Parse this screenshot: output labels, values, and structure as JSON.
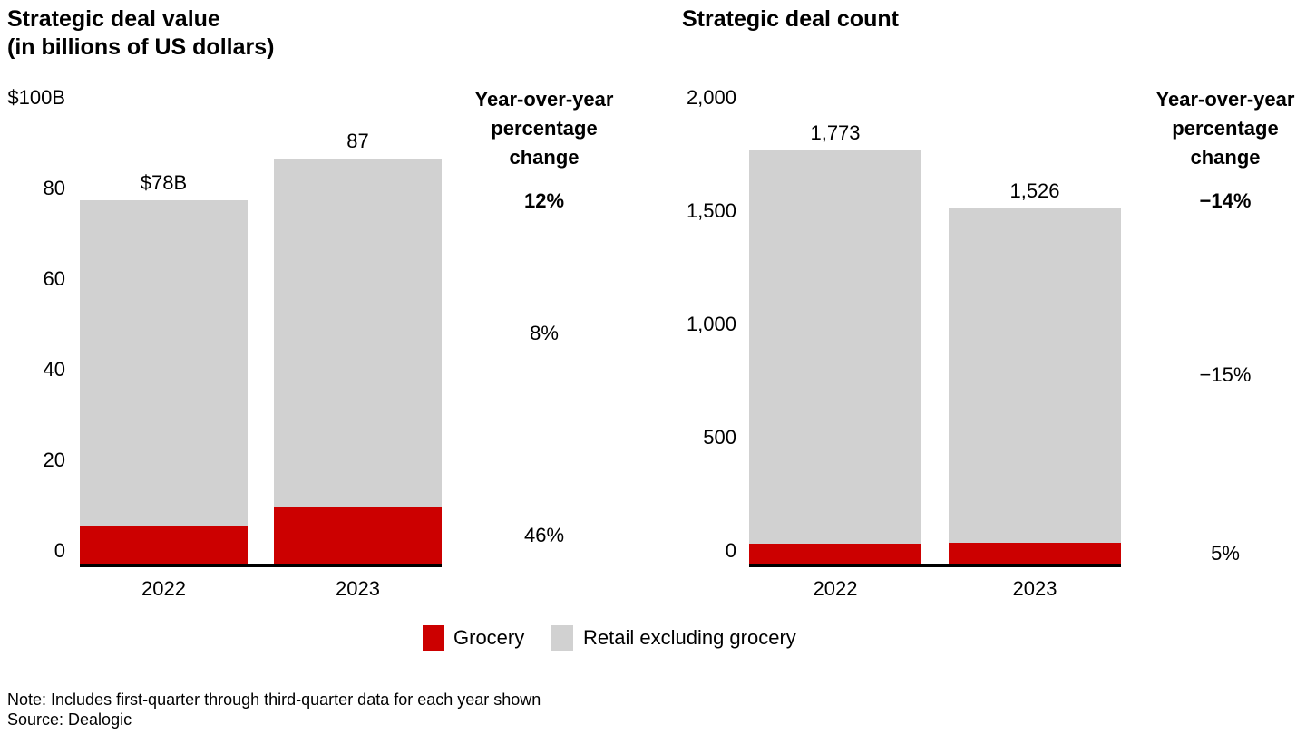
{
  "colors": {
    "grocery": "#cc0000",
    "retail": "#d1d1d1",
    "axis": "#000000",
    "text": "#000000",
    "background": "#ffffff"
  },
  "yoy_header": [
    "Year-over-year",
    "percentage",
    "change"
  ],
  "legend": [
    {
      "label": "Grocery",
      "color_key": "grocery"
    },
    {
      "label": "Retail excluding grocery",
      "color_key": "retail"
    }
  ],
  "note": "Note: Includes first-quarter through third-quarter data for each year shown",
  "source": "Source: Dealogic",
  "chart_data": [
    {
      "type": "bar",
      "stacked": true,
      "title_lines": [
        "Strategic deal value",
        "(in billions of US dollars)"
      ],
      "categories": [
        "2022",
        "2023"
      ],
      "series": [
        {
          "name": "Grocery",
          "values": [
            8,
            12
          ]
        },
        {
          "name": "Retail excluding grocery",
          "values": [
            70,
            75
          ]
        }
      ],
      "totals": [
        78,
        87
      ],
      "bar_labels": [
        "$78B",
        "87"
      ],
      "y_ticks": [
        "$100B",
        "80",
        "60",
        "40",
        "20",
        "0"
      ],
      "ylim": [
        0,
        100
      ],
      "grid": false,
      "legend_position": "bottom",
      "yoy_column_title": "Year-over-year percentage change",
      "yoy": [
        {
          "label": "12%",
          "bold": true,
          "applies_to": "total"
        },
        {
          "label": "8%",
          "bold": false,
          "applies_to": "retail"
        },
        {
          "label": "46%",
          "bold": false,
          "applies_to": "grocery"
        }
      ]
    },
    {
      "type": "bar",
      "stacked": true,
      "title_lines": [
        "Strategic deal count"
      ],
      "categories": [
        "2022",
        "2023"
      ],
      "series": [
        {
          "name": "Grocery",
          "values": [
            85,
            89
          ]
        },
        {
          "name": "Retail excluding grocery",
          "values": [
            1688,
            1437
          ]
        }
      ],
      "totals": [
        1773,
        1526
      ],
      "bar_labels": [
        "1,773",
        "1,526"
      ],
      "y_ticks": [
        "2,000",
        "1,500",
        "1,000",
        "500",
        "0"
      ],
      "ylim": [
        0,
        2000
      ],
      "grid": false,
      "legend_position": "bottom",
      "yoy_column_title": "Year-over-year percentage change",
      "yoy": [
        {
          "label": "−14%",
          "bold": true,
          "applies_to": "total"
        },
        {
          "label": "−15%",
          "bold": false,
          "applies_to": "retail"
        },
        {
          "label": "5%",
          "bold": false,
          "applies_to": "grocery"
        }
      ]
    }
  ]
}
